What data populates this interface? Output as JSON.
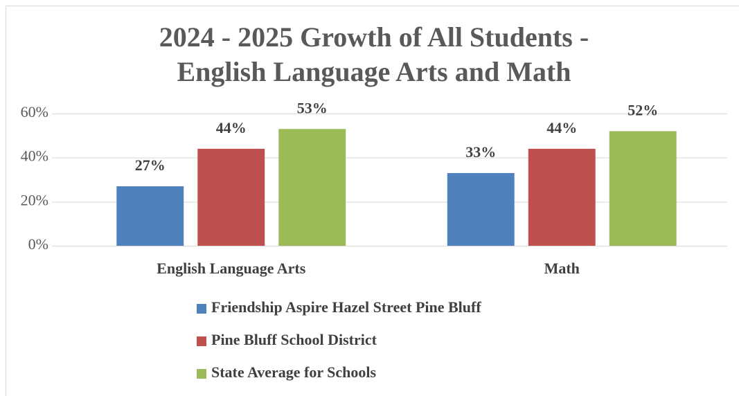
{
  "chart_data": {
    "type": "bar",
    "title": [
      "2024 - 2025 Growth of All Students -",
      "English Language Arts and Math"
    ],
    "categories": [
      "English Language Arts",
      "Math"
    ],
    "series": [
      {
        "name": "Friendship Aspire Hazel Street Pine Bluff",
        "color": "#4f81bd",
        "values": [
          27,
          33
        ],
        "value_labels": [
          "27%",
          "33%"
        ]
      },
      {
        "name": "Pine Bluff School District",
        "color": "#c0504d",
        "values": [
          44,
          44
        ],
        "value_labels": [
          "44%",
          "44%"
        ]
      },
      {
        "name": "State Average for Schools",
        "color": "#9bbb59",
        "values": [
          53,
          52
        ],
        "value_labels": [
          "53%",
          "52%"
        ]
      }
    ],
    "ylim": [
      0,
      60
    ],
    "yticks": [
      {
        "value": 0,
        "label": "0%"
      },
      {
        "value": 20,
        "label": "20%"
      },
      {
        "value": 40,
        "label": "40%"
      },
      {
        "value": 60,
        "label": "60%"
      }
    ],
    "grid": true,
    "legend": "bottom"
  }
}
